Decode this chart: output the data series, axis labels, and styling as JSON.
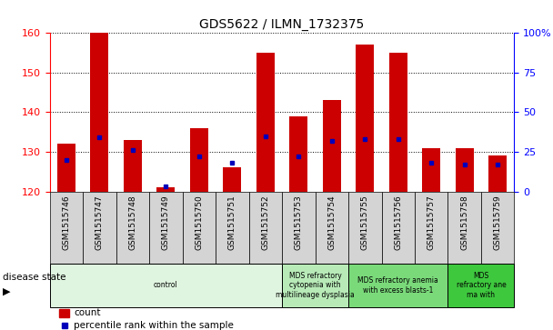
{
  "title": "GDS5622 / ILMN_1732375",
  "samples": [
    "GSM1515746",
    "GSM1515747",
    "GSM1515748",
    "GSM1515749",
    "GSM1515750",
    "GSM1515751",
    "GSM1515752",
    "GSM1515753",
    "GSM1515754",
    "GSM1515755",
    "GSM1515756",
    "GSM1515757",
    "GSM1515758",
    "GSM1515759"
  ],
  "counts": [
    132,
    160,
    133,
    121,
    136,
    126,
    155,
    139,
    143,
    157,
    155,
    131,
    131,
    129
  ],
  "percentile_ranks": [
    20,
    34,
    26,
    3,
    22,
    18,
    35,
    22,
    32,
    33,
    33,
    18,
    17,
    17
  ],
  "ymin": 120,
  "ymax": 160,
  "y_ticks": [
    120,
    130,
    140,
    150,
    160
  ],
  "bar_color": "#cc0000",
  "dot_color": "#0000bb",
  "disease_groups": [
    {
      "label": "control",
      "start": 0,
      "end": 7,
      "color": "#e0f5e0"
    },
    {
      "label": "MDS refractory\ncytopenia with\nmultilineage dysplasia",
      "start": 7,
      "end": 9,
      "color": "#b8eab8"
    },
    {
      "label": "MDS refractory anemia\nwith excess blasts-1",
      "start": 9,
      "end": 12,
      "color": "#7ada7a"
    },
    {
      "label": "MDS\nrefractory ane\nma with",
      "start": 12,
      "end": 14,
      "color": "#3ec83e"
    }
  ],
  "legend_count_label": "count",
  "legend_pct_label": "percentile rank within the sample",
  "disease_state_label": "disease state"
}
